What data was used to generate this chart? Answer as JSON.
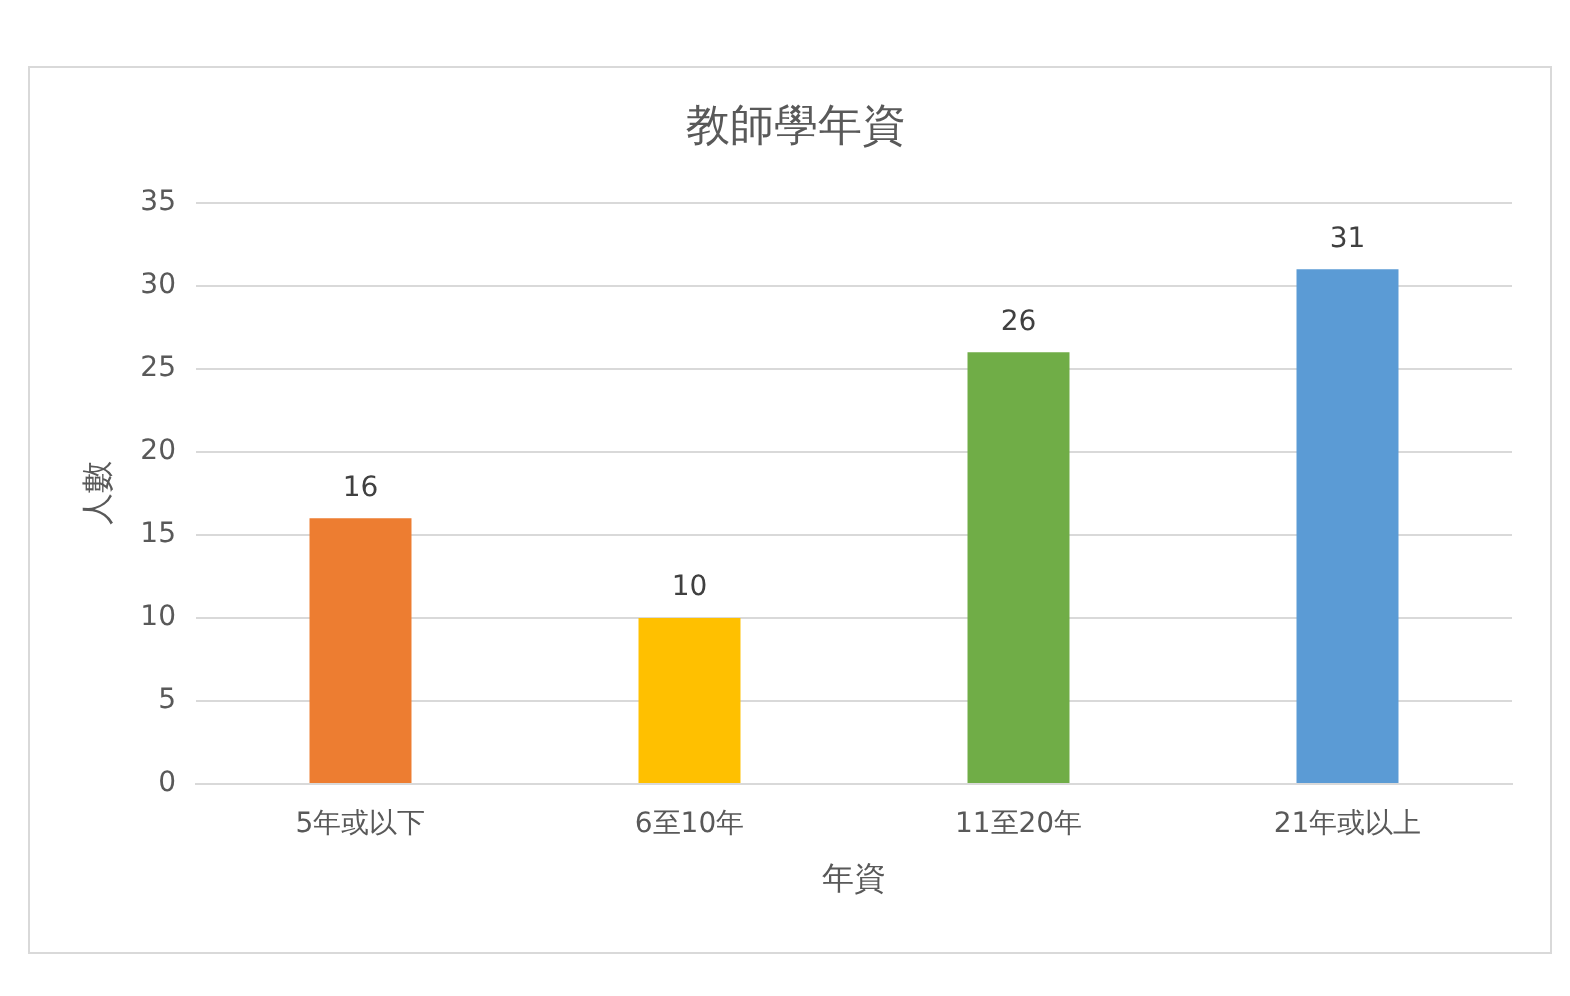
{
  "chart_data": {
    "type": "bar",
    "title": "教師學年資",
    "xlabel": "年資",
    "ylabel": "人數",
    "categories": [
      "5年或以下",
      "6至10年",
      "11至20年",
      "21年或以上"
    ],
    "values": [
      16,
      10,
      26,
      31
    ],
    "colors": [
      "#ed7d31",
      "#ffc000",
      "#70ad47",
      "#5b9bd5"
    ],
    "ylim": [
      0,
      35
    ],
    "yticks": [
      0,
      5,
      10,
      15,
      20,
      25,
      30,
      35
    ],
    "grid": "y",
    "data_labels": true
  }
}
